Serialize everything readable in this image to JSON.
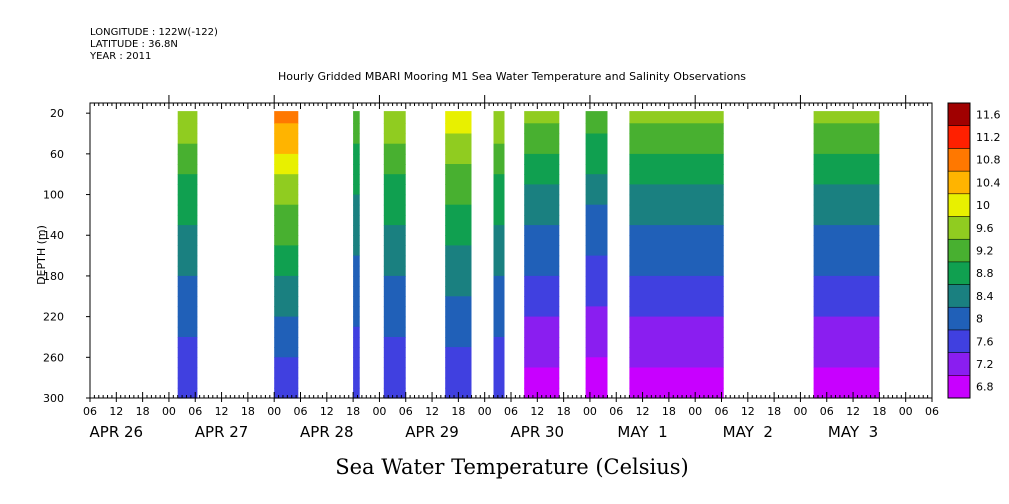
{
  "header": {
    "longitude": "LONGITUDE : 122W(-122)",
    "latitude": "LATITUDE : 36.8N",
    "year": "YEAR : 2011"
  },
  "chart_data": {
    "type": "heatmap",
    "title": "Hourly Gridded MBARI Mooring M1 Sea Water Temperature and Salinity Observations",
    "xlabel": "Sea Water Temperature (Celsius)",
    "ylabel": "DEPTH (m)",
    "ylim": [
      300,
      10
    ],
    "y_ticks": [
      20,
      60,
      100,
      140,
      180,
      220,
      260,
      300
    ],
    "x_hour_ticks": [
      "06",
      "12",
      "18",
      "00",
      "06",
      "12",
      "18",
      "00",
      "06",
      "12",
      "18",
      "00",
      "06",
      "12",
      "18",
      "00",
      "06",
      "12",
      "18",
      "00",
      "06",
      "12",
      "18",
      "00",
      "06",
      "12",
      "18",
      "00",
      "06",
      "12",
      "18",
      "00",
      "06"
    ],
    "day_labels": [
      "APR 26",
      "APR 27",
      "APR 28",
      "APR 29",
      "APR 30",
      "MAY  1",
      "MAY  2",
      "MAY  3"
    ],
    "x_range_hours_since_apr26_00": [
      6,
      198
    ],
    "legend_levels": [
      "6.8",
      "7.2",
      "7.6",
      "8",
      "8.4",
      "8.8",
      "9.2",
      "9.6",
      "10",
      "10.4",
      "10.8",
      "11.2",
      "11.6"
    ],
    "legend_colors": [
      "#c800ff",
      "#8a1ef0",
      "#4040e0",
      "#2060b8",
      "#1a8080",
      "#10a050",
      "#48b030",
      "#90cc20",
      "#e8f000",
      "#ffb400",
      "#ff7800",
      "#ff2000",
      "#a00000"
    ],
    "segments": [
      {
        "start_hour": 26,
        "end_hour": 30.5,
        "surface_temp": 10.0,
        "bottom_temp": 7.6
      },
      {
        "start_hour": 48,
        "end_hour": 53.5,
        "surface_temp": 11.2,
        "bottom_temp": 7.6
      },
      {
        "start_hour": 66,
        "end_hour": 67.5,
        "surface_temp": 9.6,
        "bottom_temp": 7.6
      },
      {
        "start_hour": 73,
        "end_hour": 78.0,
        "surface_temp": 10.0,
        "bottom_temp": 7.6
      },
      {
        "start_hour": 87,
        "end_hour": 93.0,
        "surface_temp": 10.4,
        "bottom_temp": 7.6
      },
      {
        "start_hour": 98,
        "end_hour": 100.5,
        "surface_temp": 10.0,
        "bottom_temp": 7.6
      },
      {
        "start_hour": 105,
        "end_hour": 113.0,
        "surface_temp": 9.8,
        "bottom_temp": 7.0
      },
      {
        "start_hour": 119,
        "end_hour": 124.0,
        "surface_temp": 9.6,
        "bottom_temp": 6.9
      },
      {
        "start_hour": 129,
        "end_hour": 150.5,
        "surface_temp": 9.8,
        "bottom_temp": 7.0
      },
      {
        "start_hour": 171,
        "end_hour": 186.0,
        "surface_temp": 9.8,
        "bottom_temp": 7.0
      }
    ]
  }
}
